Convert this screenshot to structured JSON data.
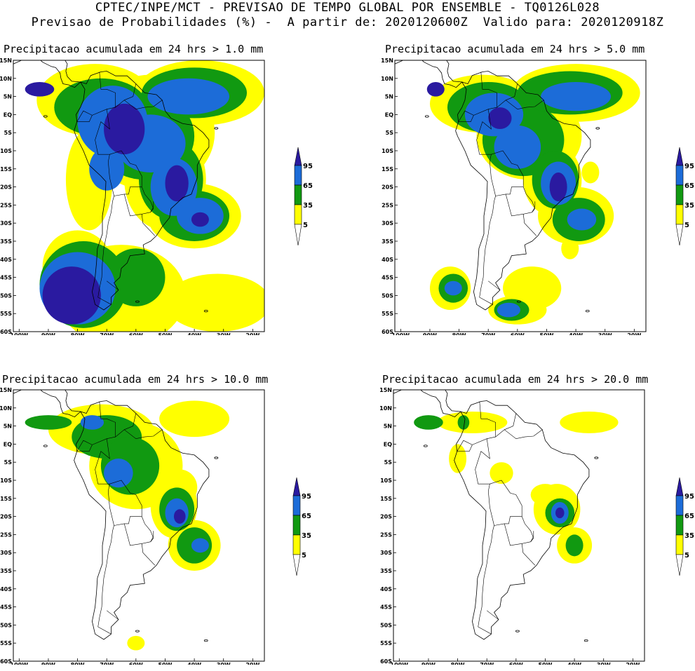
{
  "header": {
    "title_line1": "CPTEC/INPE/MCT - PREVISAO DE TEMPO GLOBAL POR ENSEMBLE - TQ0126L028",
    "title_line2": "Previsao de Probabilidades (%) -  A partir de: 2020120600Z  Valido para: 2020120918Z"
  },
  "colors": {
    "yellow": "#ffff00",
    "green": "#119911",
    "blue": "#1c6cd8",
    "darkblue": "#2a1aa0",
    "white": "#ffffff"
  },
  "axes": {
    "lat_labels": [
      "15N",
      "10N",
      "5N",
      "EQ",
      "5S",
      "10S",
      "15S",
      "20S",
      "25S",
      "30S",
      "35S",
      "40S",
      "45S",
      "50S",
      "55S",
      "60S"
    ],
    "lon_labels": [
      "100W",
      "90W",
      "80W",
      "70W",
      "60W",
      "50W",
      "40W",
      "30W",
      "20W"
    ]
  },
  "colorbar": {
    "levels": [
      "5",
      "35",
      "65",
      "95"
    ]
  },
  "panels": [
    {
      "id": "p1",
      "title": "Precipitacao acumulada em 24 hrs > 1.0 mm"
    },
    {
      "id": "p2",
      "title": "Precipitacao acumulada em 24 hrs > 5.0 mm"
    },
    {
      "id": "p3",
      "title": "Precipitacao acumulada em 24 hrs > 10.0 mm"
    },
    {
      "id": "p4",
      "title": "Precipitacao acumulada em 24 hrs > 20.0 mm"
    }
  ]
}
